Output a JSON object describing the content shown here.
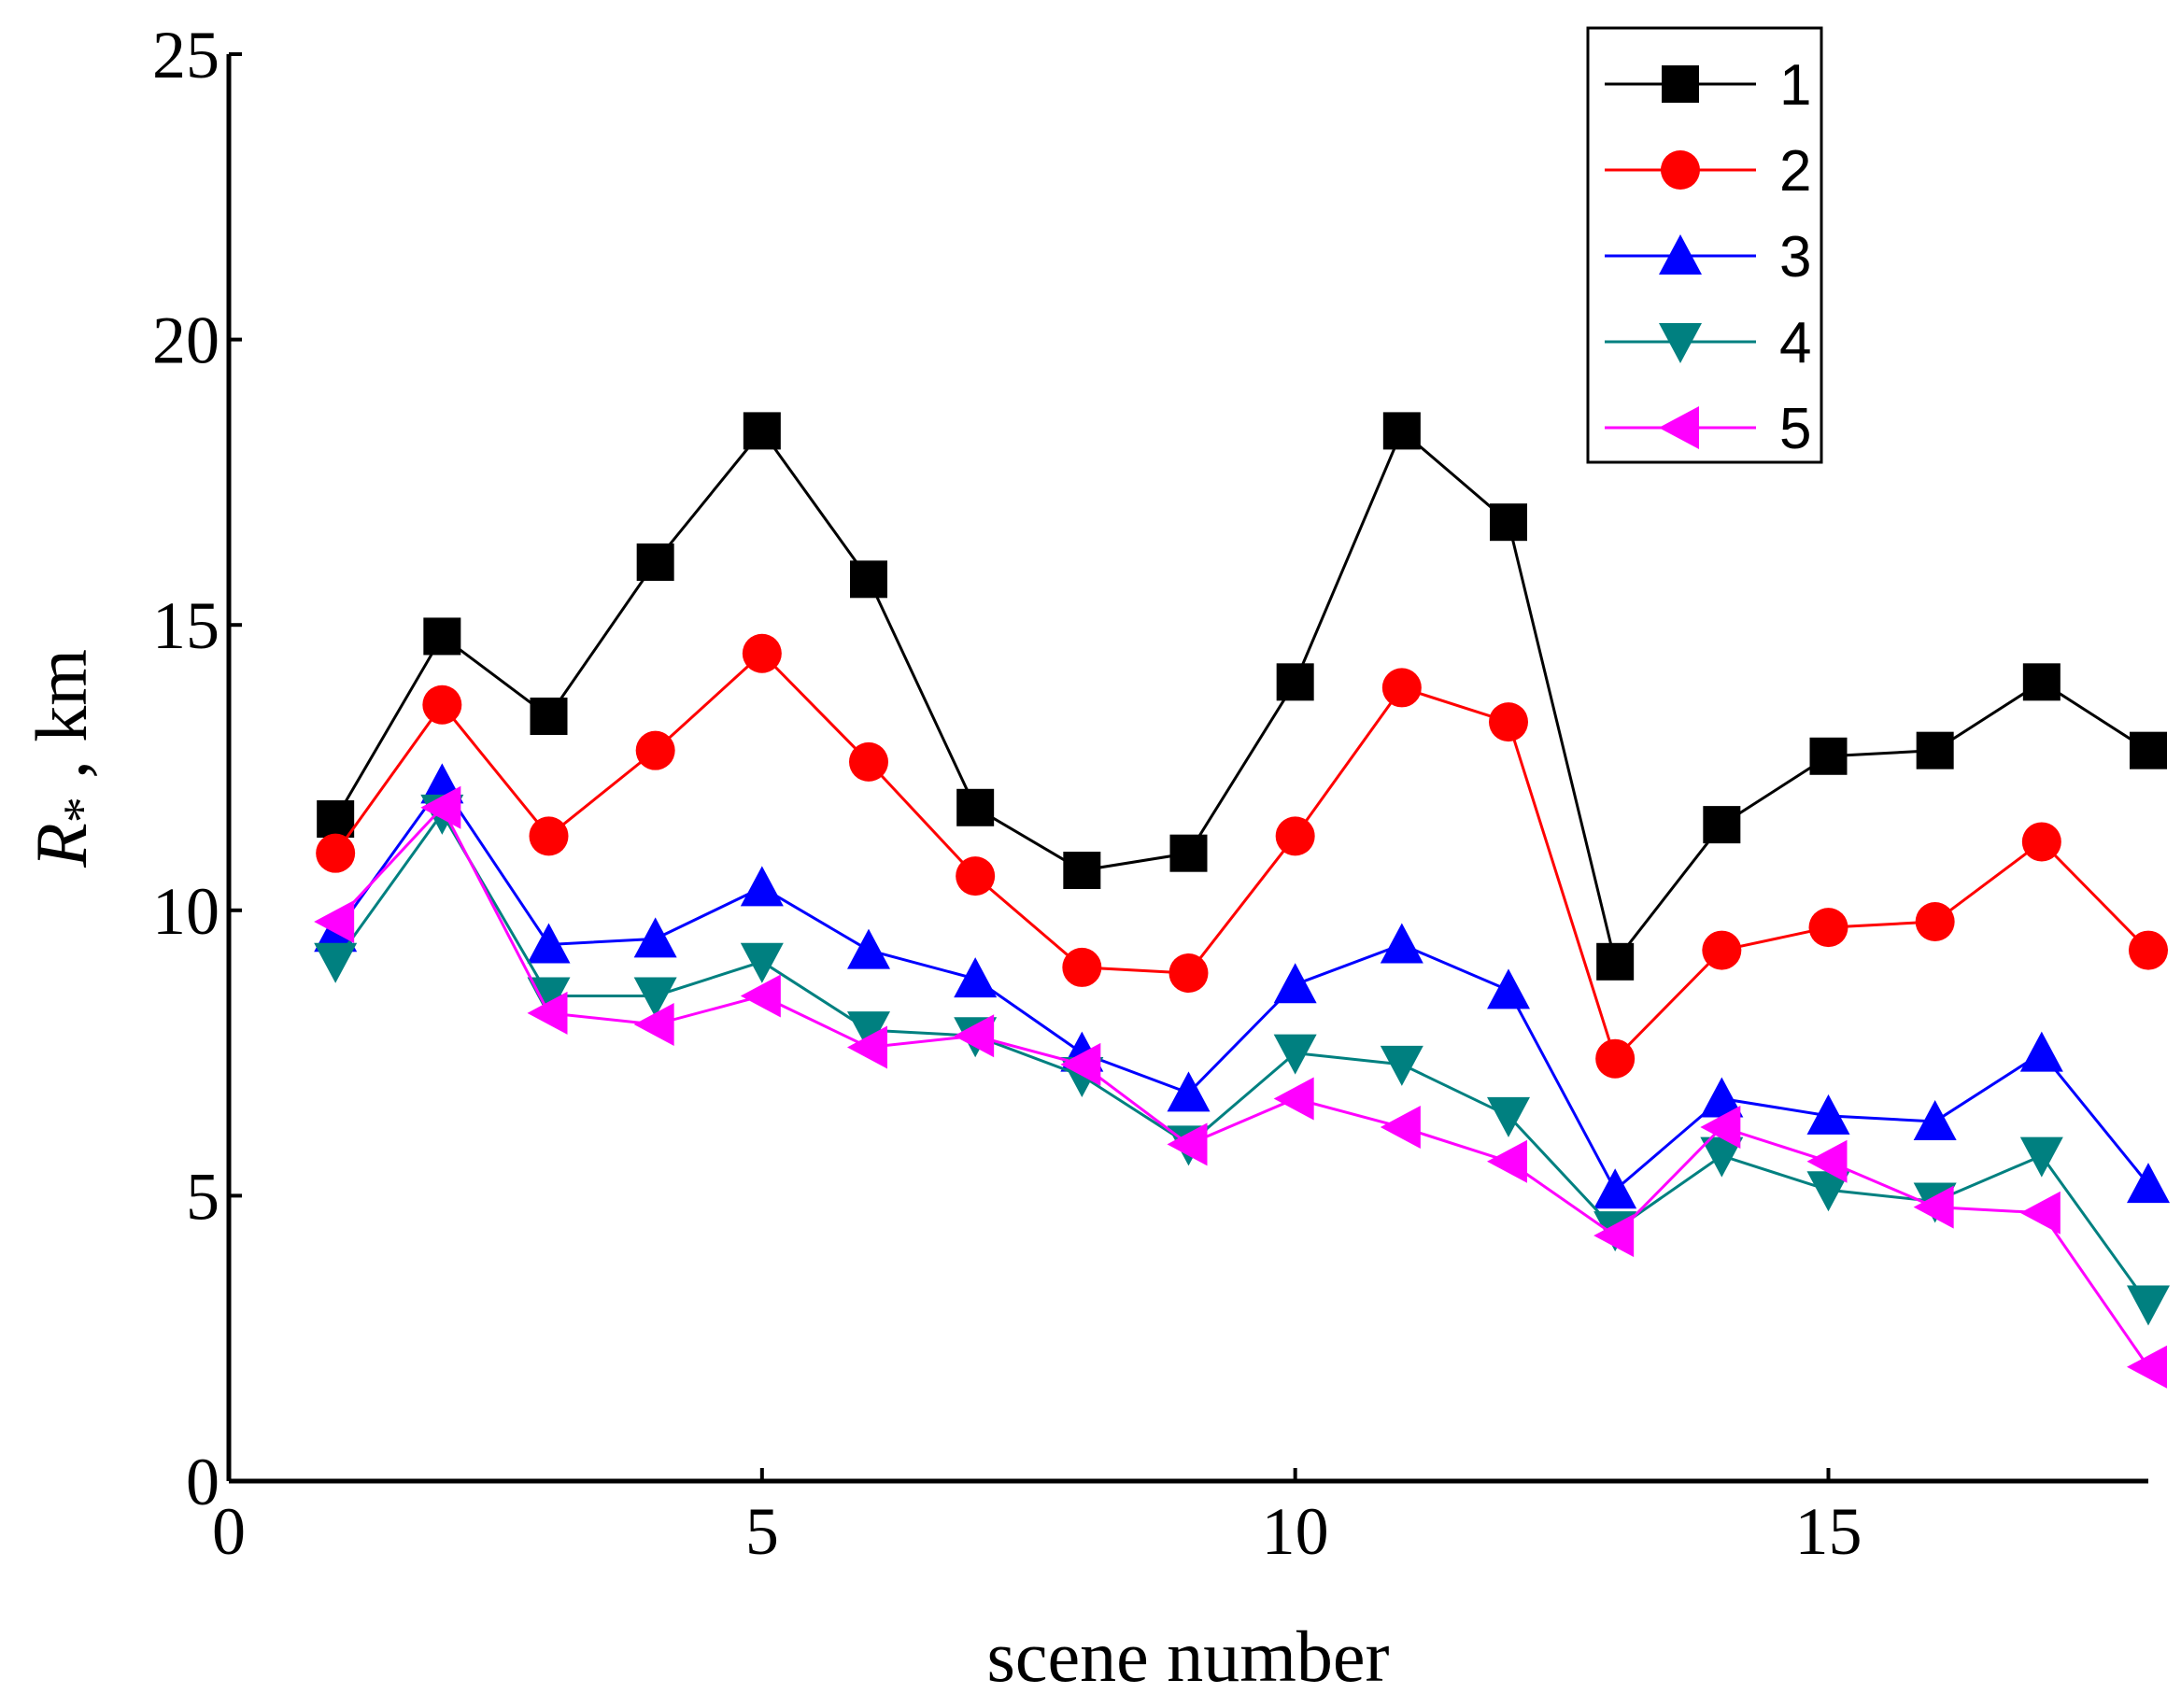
{
  "chart_data": {
    "type": "line",
    "title": "",
    "xlabel": "scene number",
    "ylabel_main": "R",
    "ylabel_sub": "*",
    "ylabel_suffix": " , km",
    "xlim": [
      0,
      18
    ],
    "ylim": [
      0,
      25
    ],
    "xticks": [
      0,
      5,
      10,
      15
    ],
    "yticks": [
      0,
      5,
      10,
      15,
      20,
      25
    ],
    "grid": false,
    "legend_position": "top-right",
    "x": [
      1,
      2,
      3,
      4,
      5,
      6,
      7,
      8,
      9,
      10,
      11,
      12,
      13,
      14,
      15,
      16,
      17,
      18
    ],
    "series": [
      {
        "name": "1",
        "color": "#000000",
        "marker": "square",
        "values": [
          11.6,
          14.8,
          13.4,
          16.1,
          18.4,
          15.8,
          11.8,
          10.7,
          11.0,
          14.0,
          18.4,
          16.8,
          9.1,
          11.5,
          12.7,
          12.8,
          14.0,
          12.8
        ]
      },
      {
        "name": "2",
        "color": "#ff0000",
        "marker": "circle",
        "values": [
          11.0,
          13.6,
          11.3,
          12.8,
          14.5,
          12.6,
          10.6,
          9.0,
          8.9,
          11.3,
          13.9,
          13.3,
          7.4,
          9.3,
          9.7,
          9.8,
          11.2,
          9.3
        ]
      },
      {
        "name": "3",
        "color": "#0000ff",
        "marker": "triangle-up",
        "values": [
          9.6,
          12.2,
          9.4,
          9.5,
          10.4,
          9.3,
          8.8,
          7.5,
          6.8,
          8.7,
          9.4,
          8.6,
          5.1,
          6.7,
          6.4,
          6.3,
          7.5,
          5.2
        ]
      },
      {
        "name": "4",
        "color": "#008080",
        "marker": "triangle-down",
        "values": [
          9.1,
          11.7,
          8.5,
          8.5,
          9.1,
          7.9,
          7.8,
          7.1,
          5.9,
          7.5,
          7.3,
          6.4,
          4.4,
          5.7,
          5.1,
          4.9,
          5.7,
          3.1
        ]
      },
      {
        "name": "5",
        "color": "#ff00ff",
        "marker": "triangle-left",
        "values": [
          9.8,
          11.8,
          8.2,
          8.0,
          8.5,
          7.6,
          7.8,
          7.3,
          5.9,
          6.7,
          6.2,
          5.6,
          4.3,
          6.2,
          5.6,
          4.8,
          4.7,
          2.0
        ]
      }
    ]
  }
}
